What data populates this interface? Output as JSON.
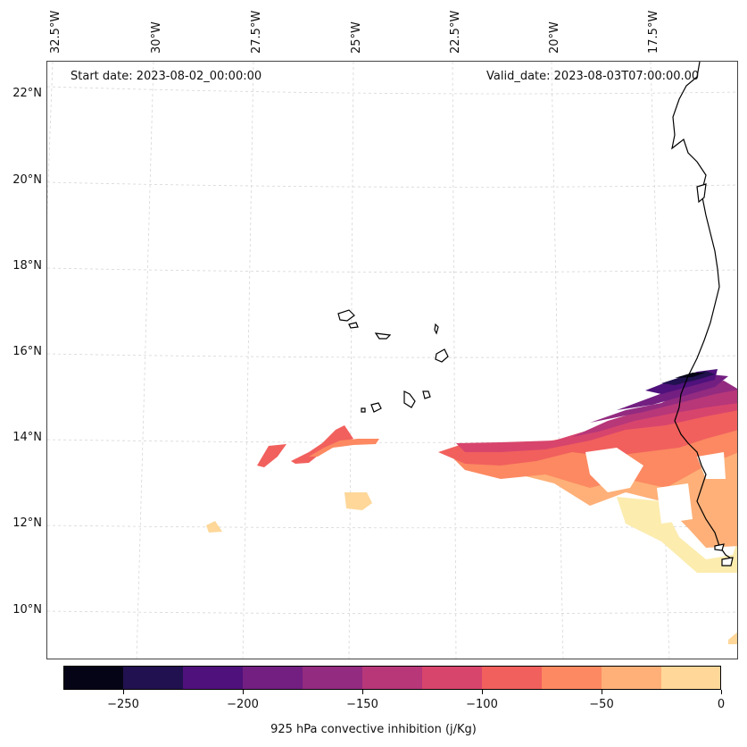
{
  "map": {
    "type": "filled-contour-map",
    "region": "Eastern tropical Atlantic / West African coast (Cape Verde)",
    "longitude_labels": [
      "32.5°W",
      "30°W",
      "27.5°W",
      "25°W",
      "22.5°W",
      "20°W",
      "17.5°W"
    ],
    "latitude_labels": [
      "22°N",
      "20°N",
      "18°N",
      "16°N",
      "14°N",
      "12°N",
      "10°N"
    ],
    "start_date": "Start date: 2023-08-02_00:00:00",
    "valid_date": "Valid_date: 2023-08-03T07:00:00.00"
  },
  "colorbar": {
    "label": "925 hPa convective inhibition (j/Kg)",
    "ticks": [
      "−250",
      "−200",
      "−150",
      "−100",
      "−50",
      "0"
    ],
    "tick_values": [
      -250,
      -200,
      -150,
      -100,
      -50,
      0
    ],
    "levels": [
      -275,
      -250,
      -225,
      -200,
      -175,
      -150,
      -125,
      -100,
      -75,
      -50,
      -25,
      0
    ],
    "colors": [
      "#050417",
      "#221150",
      "#4f117b",
      "#721f81",
      "#932b80",
      "#b73779",
      "#d8456c",
      "#f1605d",
      "#fc8961",
      "#feb078",
      "#fed799",
      "#fcecae"
    ]
  },
  "chart_data": {
    "type": "heatmap",
    "title": "",
    "variable": "925 hPa convective inhibition",
    "units": "j/Kg",
    "color_range": [
      -275,
      0
    ],
    "start_date": "2023-08-02_00:00:00",
    "valid_date": "2023-08-03T07:00:00.00"
  }
}
